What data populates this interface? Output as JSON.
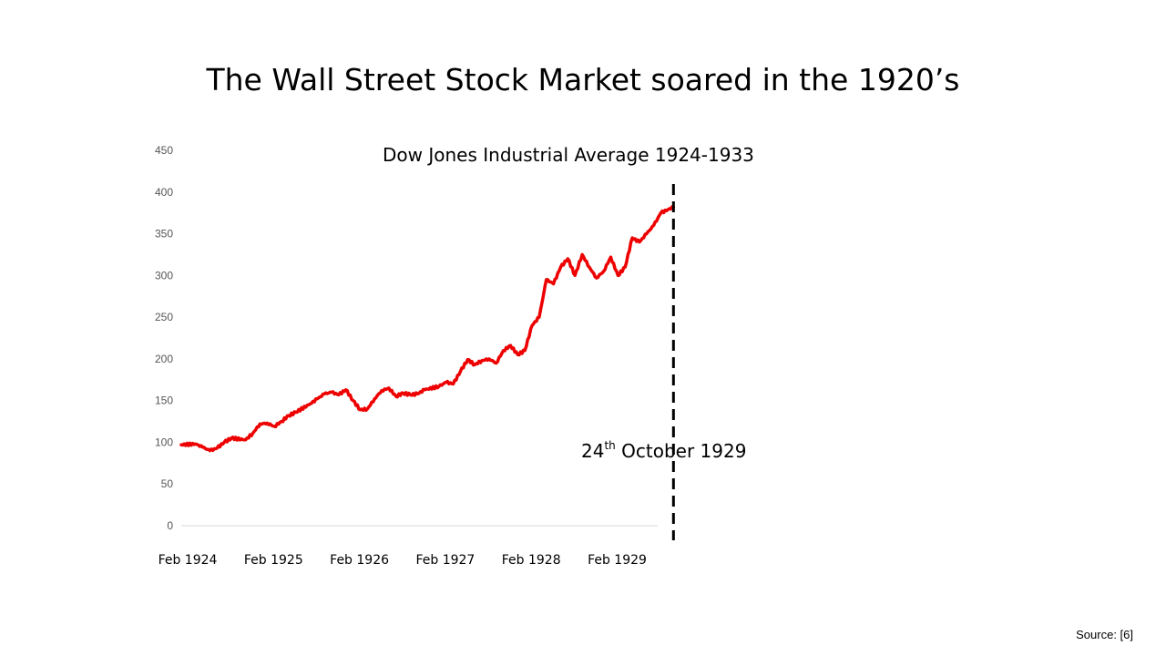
{
  "slide": {
    "title": "The Wall Street Stock Market soared in the 1920’s",
    "source": "Source: [6]"
  },
  "annotation": {
    "date_main": "24",
    "date_sup": "th",
    "date_rest": " October 1929"
  },
  "colors": {
    "series": "#ee0000",
    "marker_line": "#000000",
    "baseline": "#d9d9d9"
  },
  "chart_data": {
    "type": "line",
    "title": "Dow Jones Industrial Average 1924-1933",
    "xlabel": "",
    "ylabel": "",
    "ylim": [
      0,
      450
    ],
    "yticks": [
      0,
      50,
      100,
      150,
      200,
      250,
      300,
      350,
      400,
      450
    ],
    "xticks": [
      {
        "label": "Feb 1924",
        "x": "1924-02"
      },
      {
        "label": "Feb 1925",
        "x": "1925-02"
      },
      {
        "label": "Feb 1926",
        "x": "1926-02"
      },
      {
        "label": "Feb 1927",
        "x": "1927-02"
      },
      {
        "label": "Feb 1928",
        "x": "1928-02"
      },
      {
        "label": "Feb 1929",
        "x": "1929-02"
      }
    ],
    "grid": false,
    "legend": "none",
    "marker": {
      "x": "1929-10-24",
      "style": "dashed vertical line"
    },
    "series": [
      {
        "x": [
          "1924-02",
          "1924-04",
          "1924-05",
          "1924-06",
          "1924-07",
          "1924-08",
          "1924-09",
          "1924-11",
          "1924-12",
          "1925-01",
          "1925-02",
          "1925-03",
          "1925-04",
          "1925-05",
          "1925-06",
          "1925-08",
          "1925-09",
          "1925-10",
          "1925-11",
          "1925-12",
          "1926-01",
          "1926-02",
          "1926-03",
          "1926-04",
          "1926-05",
          "1926-06",
          "1926-07",
          "1926-08",
          "1926-09",
          "1926-10",
          "1926-11",
          "1926-12",
          "1927-02",
          "1927-03",
          "1927-04",
          "1927-05",
          "1927-06",
          "1927-07",
          "1927-08",
          "1927-09",
          "1927-10",
          "1927-11",
          "1927-12",
          "1928-01",
          "1928-02",
          "1928-03",
          "1928-04",
          "1928-05",
          "1928-06",
          "1928-07",
          "1928-08",
          "1928-09",
          "1928-10",
          "1928-11",
          "1928-12",
          "1929-01",
          "1929-02",
          "1929-03",
          "1929-04",
          "1929-05",
          "1929-06",
          "1929-07",
          "1929-08",
          "1929-09",
          "1929-10-24"
        ],
        "y": [
          97,
          98,
          94,
          90,
          93,
          100,
          105,
          103,
          111,
          122,
          123,
          119,
          125,
          132,
          136,
          146,
          152,
          158,
          160,
          157,
          163,
          150,
          139,
          140,
          152,
          162,
          165,
          155,
          159,
          157,
          158,
          163,
          167,
          172,
          170,
          185,
          199,
          193,
          198,
          200,
          195,
          210,
          216,
          205,
          210,
          240,
          250,
          295,
          290,
          310,
          320,
          300,
          325,
          310,
          297,
          305,
          322,
          300,
          310,
          345,
          340,
          350,
          360,
          375,
          382
        ]
      }
    ]
  }
}
